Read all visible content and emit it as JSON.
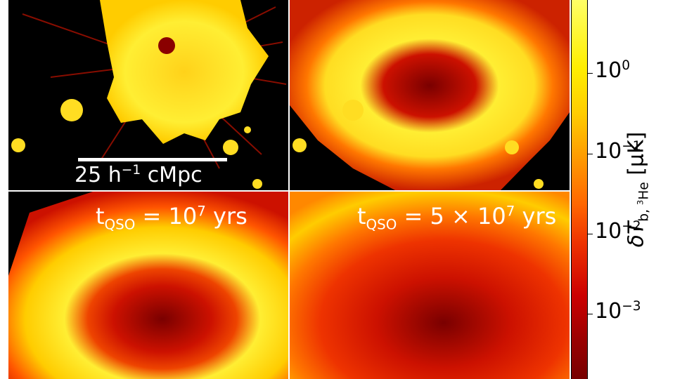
{
  "scale_bar": {
    "prefix": "25 h",
    "exponent": "−1",
    "suffix": " cMpc"
  },
  "time_labels": [
    {
      "prefix": "t",
      "sub": "QSO",
      "middle": " = 10",
      "exp": "7",
      "suffix": " yrs"
    },
    {
      "prefix": "t",
      "sub": "QSO",
      "middle": " = 5 × 10",
      "exp": "7",
      "suffix": " yrs"
    }
  ],
  "colorbar": {
    "scale": "log",
    "ticks": [
      {
        "base": "10",
        "exp": "0"
      },
      {
        "base": "10",
        "exp": "−1"
      },
      {
        "base": "10",
        "exp": "−2"
      },
      {
        "base": "10",
        "exp": "−3"
      }
    ],
    "title_symbol": "δT",
    "title_sub_a": "b, ",
    "title_sub_iso_sup": "3",
    "title_sub_iso": "He",
    "title_unit": " [μK]"
  },
  "colors": {
    "hot_yellow": "#ffee33",
    "orange": "#ff7700",
    "red": "#cc1100",
    "dark_red": "#5a0000",
    "background": "#000000"
  }
}
